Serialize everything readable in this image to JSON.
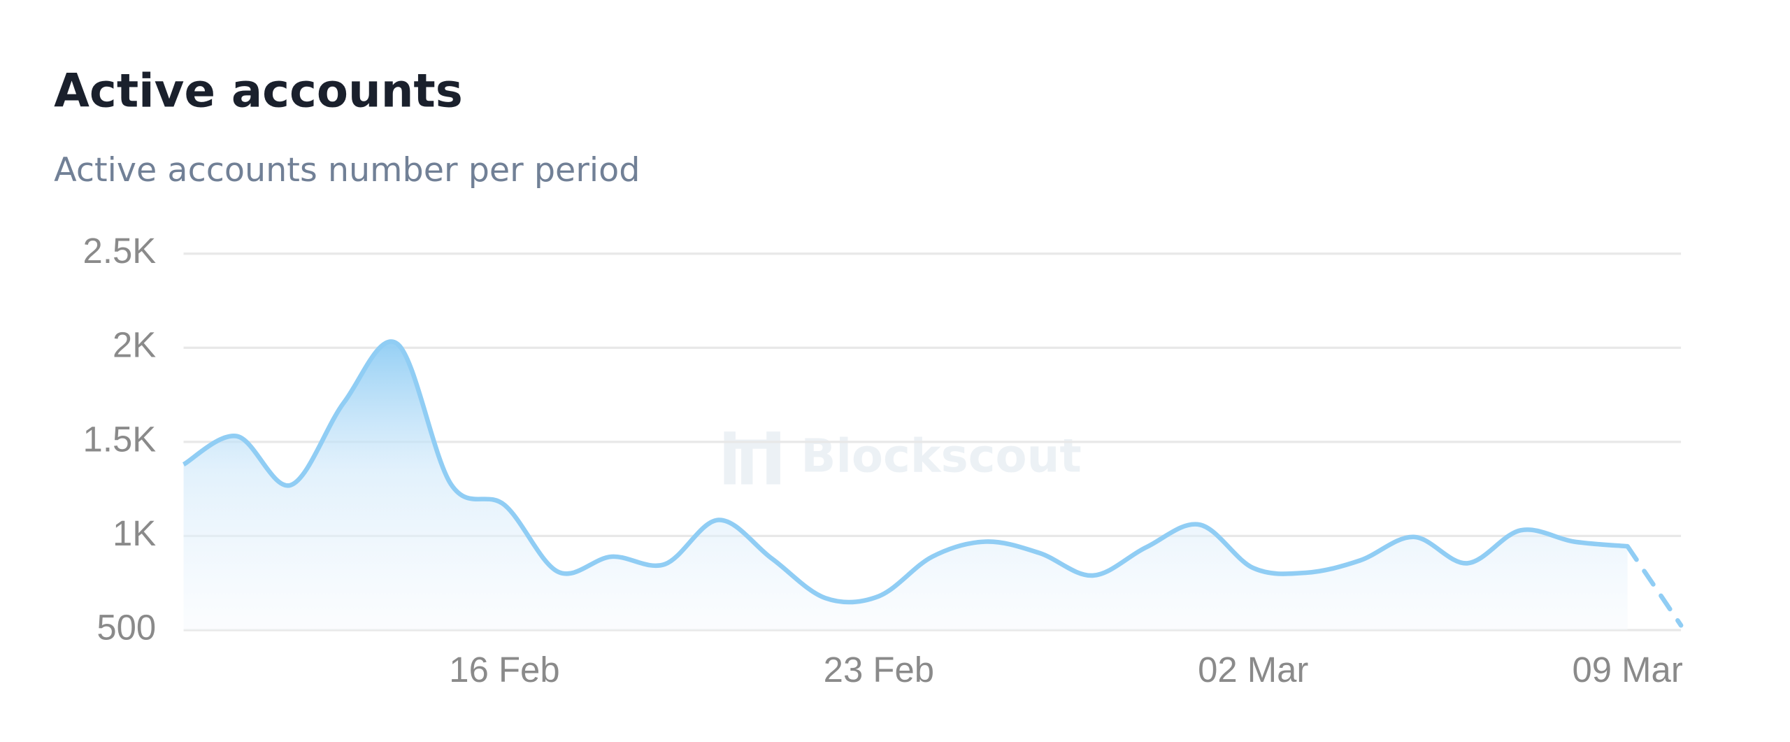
{
  "chart_data": {
    "type": "line",
    "title": "Active accounts",
    "subtitle": "Active accounts number per period",
    "watermark": "Blockscout",
    "categories": [
      null,
      null,
      null,
      null,
      null,
      null,
      "16 Feb",
      null,
      null,
      null,
      null,
      null,
      null,
      "23 Feb",
      null,
      null,
      null,
      null,
      null,
      null,
      "02 Mar",
      null,
      null,
      null,
      null,
      null,
      null,
      "09 Mar",
      null
    ],
    "series": [
      {
        "name": "Active accounts",
        "color": "#90cdf4",
        "values": [
          1380,
          1530,
          1270,
          1710,
          2020,
          1275,
          1165,
          810,
          890,
          850,
          1085,
          880,
          670,
          680,
          890,
          970,
          910,
          790,
          940,
          1060,
          830,
          805,
          870,
          995,
          855,
          1030,
          970,
          945,
          525
        ]
      }
    ],
    "last_point_incomplete": true,
    "ylim": [
      500,
      2500
    ],
    "yticks": [
      500,
      {
        "value": 1000,
        "label": "1K"
      },
      {
        "value": 1500,
        "label": "1.5K"
      },
      {
        "value": 2000,
        "label": "2K"
      },
      {
        "value": 2500,
        "label": "2.5K"
      }
    ],
    "grid": true
  }
}
